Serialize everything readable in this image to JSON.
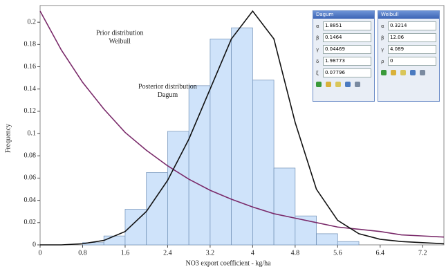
{
  "chart_data": {
    "type": "histogram",
    "xlabel": "NO3 export coefficient - kg/ha",
    "ylabel": "Frequency",
    "xlim": [
      0,
      7.6
    ],
    "ylim": [
      0,
      0.215
    ],
    "xticks": [
      0,
      0.8,
      1.6,
      2.4,
      3.2,
      4,
      4.8,
      5.6,
      6.4,
      7.2
    ],
    "yticks": [
      0,
      0.02,
      0.04,
      0.06,
      0.08,
      0.1,
      0.12,
      0.14,
      0.16,
      0.18,
      0.2
    ],
    "bins": [
      0,
      0.4,
      0.8,
      1.2,
      1.6,
      2,
      2.4,
      2.8,
      3.2,
      3.6,
      4,
      4.4,
      4.8,
      5.2,
      5.6,
      6,
      6.4,
      6.8,
      7.2,
      7.6
    ],
    "counts": [
      0,
      0,
      0.002,
      0.008,
      0.032,
      0.065,
      0.102,
      0.143,
      0.185,
      0.195,
      0.148,
      0.069,
      0.026,
      0.01,
      0.003,
      0,
      0,
      0,
      0
    ],
    "color": "#cfe3fa",
    "x": [
      0,
      0.4,
      0.8,
      1.2,
      1.6,
      2,
      2.4,
      2.8,
      3.2,
      3.6,
      4,
      4.4,
      4.8,
      5.2,
      5.6,
      6,
      6.4,
      6.8,
      7.2,
      7.6
    ],
    "curves": [
      {
        "color": "#7a2a6a",
        "values": [
          0.21,
          0.175,
          0.146,
          0.122,
          0.101,
          0.085,
          0.071,
          0.059,
          0.049,
          0.041,
          0.034,
          0.028,
          0.024,
          0.02,
          0.016,
          0.014,
          0.012,
          0.009,
          0.008,
          0.007
        ]
      },
      {
        "color": "#111111",
        "values": [
          0,
          0,
          0.001,
          0.004,
          0.012,
          0.03,
          0.058,
          0.095,
          0.14,
          0.185,
          0.21,
          0.185,
          0.11,
          0.05,
          0.022,
          0.01,
          0.005,
          0.003,
          0.002,
          0.001
        ]
      }
    ],
    "annotations": [
      {
        "lines": [
          "Prior distribution",
          "Weibull"
        ],
        "x": 1.5,
        "y": 0.19
      },
      {
        "lines": [
          "Posterior distribution",
          "Dagum"
        ],
        "x": 2.4,
        "y": 0.142
      }
    ]
  },
  "panels": [
    {
      "title": "Dagum",
      "rows": [
        [
          "α",
          "1.8851"
        ],
        [
          "β",
          "0.1464"
        ],
        [
          "γ",
          "0.04469"
        ],
        [
          "δ",
          "1.98773"
        ],
        [
          "ξ",
          "0.07796"
        ]
      ]
    },
    {
      "title": "Weibull",
      "rows": [
        [
          "α",
          "0.3214"
        ],
        [
          "β",
          "12.06"
        ],
        [
          "γ",
          "4.089"
        ],
        [
          "ρ",
          "0"
        ]
      ]
    }
  ]
}
